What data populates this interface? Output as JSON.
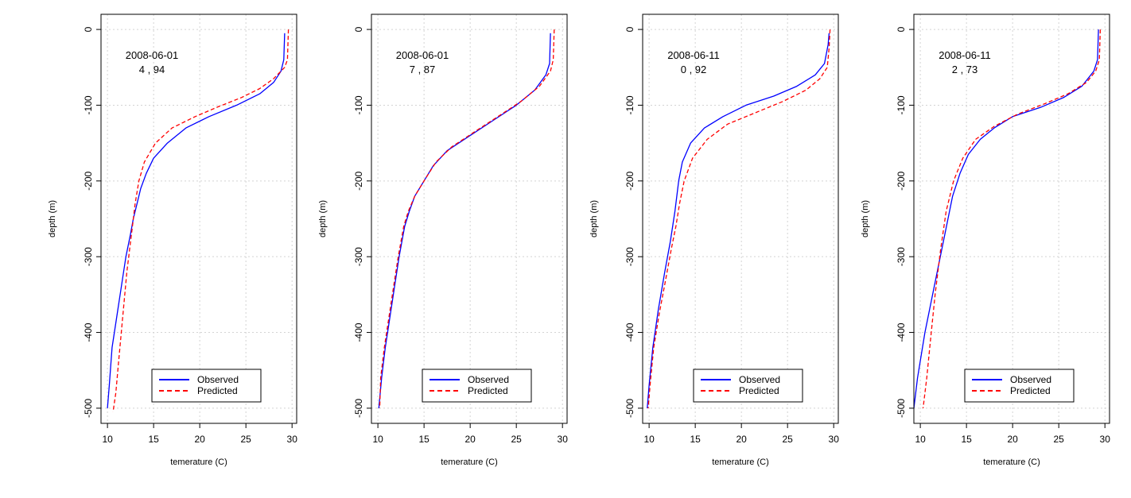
{
  "figure": {
    "xlabel": "temerature (C)",
    "ylabel": "depth (m)",
    "legend_labels": [
      "Observed",
      "Predicted"
    ],
    "colors": {
      "observed": "#0000ff",
      "predicted": "#ff0000",
      "grid": "#d3d3d3"
    }
  },
  "chart_data": [
    {
      "type": "line",
      "annotation": [
        "2008-06-01",
        "4 , 94"
      ],
      "xlabel": "temerature (C)",
      "ylabel": "depth (m)",
      "xlim": [
        9.3,
        30.5
      ],
      "ylim": [
        -520,
        20
      ],
      "xticks": [
        10,
        15,
        20,
        25,
        30
      ],
      "yticks": [
        0,
        -100,
        -200,
        -300,
        -400,
        -500
      ],
      "grid": true,
      "legend": "bottom-right",
      "series": [
        {
          "name": "Observed",
          "style": "solid",
          "color": "#0000ff",
          "x": [
            29.2,
            29.1,
            28.8,
            28.0,
            26.5,
            24.0,
            21.0,
            18.5,
            16.5,
            15.0,
            14.2,
            13.6,
            13.2,
            12.8,
            12.5,
            12.0,
            11.5,
            11.0,
            10.5,
            10.2,
            10.0
          ],
          "y": [
            -5,
            -40,
            -55,
            -70,
            -85,
            -100,
            -115,
            -130,
            -150,
            -170,
            -190,
            -210,
            -230,
            -250,
            -270,
            -300,
            -340,
            -380,
            -420,
            -470,
            -500
          ]
        },
        {
          "name": "Predicted",
          "style": "dashed",
          "color": "#ff0000",
          "x": [
            29.6,
            29.5,
            29.2,
            28.0,
            26.5,
            24.5,
            22.0,
            19.5,
            17.0,
            15.2,
            14.0,
            13.4,
            13.0,
            12.7,
            12.4,
            12.1,
            11.8,
            11.5,
            11.2,
            10.9,
            10.6
          ],
          "y": [
            0,
            -40,
            -50,
            -65,
            -78,
            -90,
            -102,
            -115,
            -130,
            -150,
            -175,
            -200,
            -230,
            -260,
            -290,
            -320,
            -360,
            -400,
            -440,
            -480,
            -505
          ]
        }
      ]
    },
    {
      "type": "line",
      "annotation": [
        "2008-06-01",
        "7 , 87"
      ],
      "xlabel": "temerature (C)",
      "ylabel": "depth (m)",
      "xlim": [
        9.3,
        30.5
      ],
      "ylim": [
        -520,
        20
      ],
      "xticks": [
        10,
        15,
        20,
        25,
        30
      ],
      "yticks": [
        0,
        -100,
        -200,
        -300,
        -400,
        -500
      ],
      "grid": true,
      "legend": "bottom-right",
      "series": [
        {
          "name": "Observed",
          "style": "solid",
          "color": "#0000ff",
          "x": [
            28.7,
            28.6,
            28.2,
            27.0,
            25.0,
            22.5,
            20.0,
            17.5,
            16.0,
            15.0,
            14.0,
            13.4,
            12.9,
            12.3,
            11.8,
            11.3,
            10.8,
            10.4,
            10.1
          ],
          "y": [
            -5,
            -45,
            -60,
            -80,
            -100,
            -120,
            -140,
            -160,
            -180,
            -200,
            -220,
            -240,
            -260,
            -300,
            -340,
            -380,
            -420,
            -460,
            -500
          ]
        },
        {
          "name": "Predicted",
          "style": "dashed",
          "color": "#ff0000",
          "x": [
            29.1,
            29.0,
            28.7,
            27.5,
            25.5,
            23.0,
            20.5,
            18.0,
            16.3,
            15.0,
            14.0,
            13.3,
            12.8,
            12.2,
            11.7,
            11.2,
            10.7,
            10.3,
            10.2
          ],
          "y": [
            0,
            -40,
            -55,
            -75,
            -95,
            -115,
            -135,
            -155,
            -175,
            -200,
            -220,
            -240,
            -260,
            -300,
            -340,
            -380,
            -420,
            -460,
            -500
          ]
        }
      ]
    },
    {
      "type": "line",
      "annotation": [
        "2008-06-11",
        "0 , 92"
      ],
      "xlabel": "temerature (C)",
      "ylabel": "depth (m)",
      "xlim": [
        9.3,
        30.5
      ],
      "ylim": [
        -520,
        20
      ],
      "xticks": [
        10,
        15,
        20,
        25,
        30
      ],
      "yticks": [
        0,
        -100,
        -200,
        -300,
        -400,
        -500
      ],
      "grid": true,
      "legend": "bottom-right",
      "series": [
        {
          "name": "Observed",
          "style": "solid",
          "color": "#0000ff",
          "x": [
            29.5,
            29.4,
            29.0,
            28.0,
            26.0,
            23.5,
            20.5,
            18.0,
            16.0,
            14.5,
            13.6,
            13.2,
            12.8,
            12.3,
            11.7,
            11.0,
            10.4,
            10.0,
            9.8
          ],
          "y": [
            -5,
            -20,
            -45,
            -60,
            -75,
            -88,
            -100,
            -115,
            -130,
            -150,
            -175,
            -200,
            -240,
            -280,
            -320,
            -370,
            -420,
            -470,
            -500
          ]
        },
        {
          "name": "Predicted",
          "style": "dashed",
          "color": "#ff0000",
          "x": [
            29.6,
            29.5,
            29.3,
            28.5,
            27.0,
            24.5,
            21.5,
            18.5,
            16.3,
            14.7,
            13.8,
            13.3,
            12.9,
            12.4,
            11.8,
            11.1,
            10.5,
            10.1,
            9.9
          ],
          "y": [
            0,
            -25,
            -50,
            -65,
            -80,
            -95,
            -110,
            -125,
            -145,
            -170,
            -200,
            -230,
            -260,
            -290,
            -330,
            -375,
            -420,
            -470,
            -500
          ]
        }
      ]
    },
    {
      "type": "line",
      "annotation": [
        "2008-06-11",
        "2 , 73"
      ],
      "xlabel": "temerature (C)",
      "ylabel": "depth (m)",
      "xlim": [
        9.3,
        30.5
      ],
      "ylim": [
        -520,
        20
      ],
      "xticks": [
        10,
        15,
        20,
        25,
        30
      ],
      "yticks": [
        0,
        -100,
        -200,
        -300,
        -400,
        -500
      ],
      "grid": true,
      "legend": "bottom-right",
      "series": [
        {
          "name": "Observed",
          "style": "solid",
          "color": "#0000ff",
          "x": [
            29.3,
            29.2,
            28.8,
            27.5,
            25.5,
            23.0,
            20.0,
            18.0,
            16.5,
            15.2,
            14.3,
            13.5,
            12.5,
            11.5,
            10.5,
            9.7,
            9.3
          ],
          "y": [
            0,
            -40,
            -55,
            -75,
            -90,
            -103,
            -115,
            -130,
            -145,
            -165,
            -190,
            -220,
            -280,
            -340,
            -400,
            -460,
            -500
          ]
        },
        {
          "name": "Predicted",
          "style": "dashed",
          "color": "#ff0000",
          "x": [
            29.5,
            29.4,
            29.0,
            28.0,
            26.0,
            23.5,
            20.5,
            18.0,
            16.0,
            14.6,
            13.6,
            12.8,
            12.2,
            11.6,
            11.1,
            10.7,
            10.3
          ],
          "y": [
            0,
            -40,
            -55,
            -70,
            -85,
            -98,
            -112,
            -128,
            -145,
            -170,
            -200,
            -240,
            -290,
            -350,
            -410,
            -460,
            -500
          ]
        }
      ]
    }
  ]
}
